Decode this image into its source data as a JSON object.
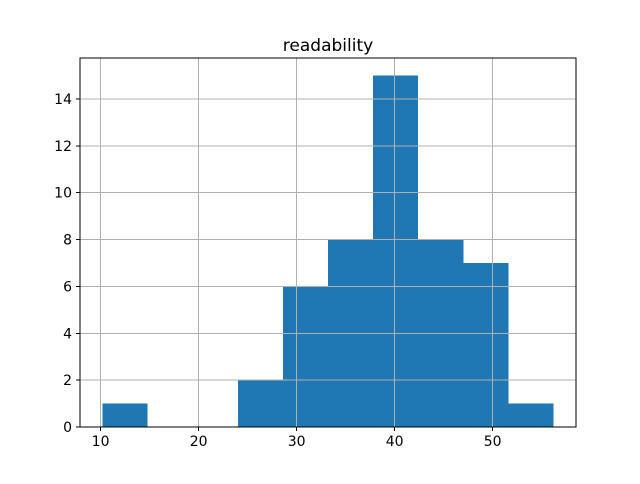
{
  "figure": {
    "background_color": "#ffffff"
  },
  "chart_data": {
    "type": "bar",
    "subtype": "histogram",
    "title": "readability",
    "xlabel": "",
    "ylabel": "",
    "bin_edges": [
      10.2,
      14.8,
      19.4,
      24.0,
      28.6,
      33.2,
      37.8,
      42.4,
      47.0,
      51.6,
      56.2
    ],
    "counts": [
      1,
      0,
      0,
      2,
      6,
      8,
      15,
      8,
      7,
      1
    ],
    "x_ticks": [
      10,
      20,
      30,
      40,
      50
    ],
    "y_ticks": [
      0,
      2,
      4,
      6,
      8,
      10,
      12,
      14
    ],
    "xlim": [
      7.9,
      58.5
    ],
    "ylim": [
      0,
      15.75
    ],
    "grid": true,
    "grid_over_bars": true,
    "legend": null,
    "bar_color": "#1f77b4",
    "grid_color": "#b0b0b0",
    "axis_color": "#000000",
    "text_color": "#000000"
  }
}
